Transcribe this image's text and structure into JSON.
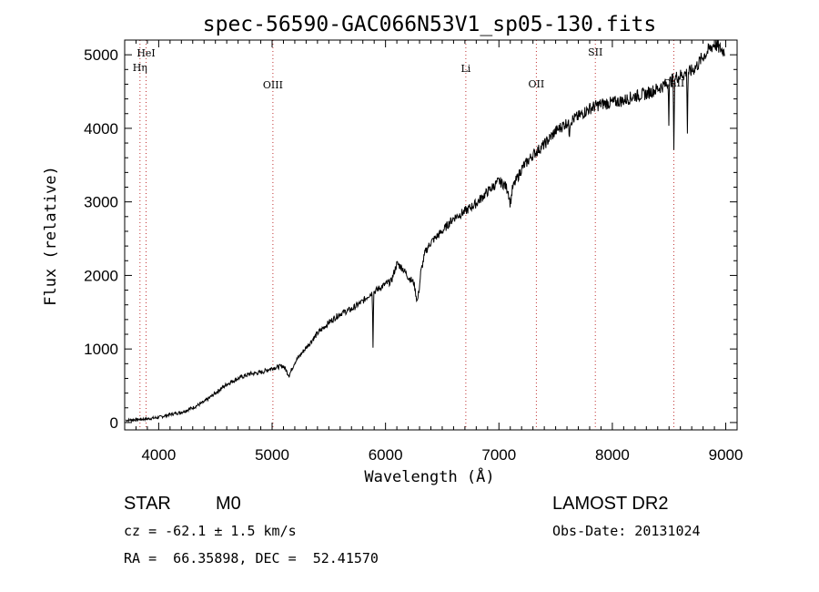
{
  "title": "spec-56590-GAC066N53V1_sp05-130.fits",
  "info": {
    "obj_class": "STAR",
    "subclass": "M0",
    "cz": "cz = -62.1 ± 1.5 km/s",
    "coords": "RA =  66.35898, DEC =  52.41570",
    "survey": "LAMOST DR2",
    "obs_date": "Obs-Date: 20131024"
  },
  "colors": {
    "line": "#000000",
    "background": "#ffffff"
  },
  "chart_data": {
    "type": "line",
    "title": "spec-56590-GAC066N53V1_sp05-130.fits",
    "xlabel": "Wavelength (Å)",
    "ylabel": "Flux (relative)",
    "xlim": [
      3700,
      9100
    ],
    "ylim": [
      -100,
      5200
    ],
    "xticks": [
      4000,
      5000,
      6000,
      7000,
      8000,
      9000
    ],
    "yticks": [
      0,
      1000,
      2000,
      3000,
      4000,
      5000
    ],
    "grid": false,
    "series": [
      {
        "x": [
          3700,
          3800,
          3900,
          4000,
          4100,
          4200,
          4300,
          4400,
          4500,
          4600,
          4700,
          4800,
          4900,
          5000,
          5100,
          5150,
          5200,
          5300,
          5400,
          5500,
          5600,
          5700,
          5800,
          5850,
          5890,
          5950,
          6000,
          6050,
          6100,
          6150,
          6200,
          6250,
          6300,
          6350,
          6400,
          6500,
          6600,
          6700,
          6800,
          6900,
          7000,
          7050,
          7100,
          7200,
          7300,
          7400,
          7500,
          7600,
          7700,
          7800,
          7900,
          8000,
          8100,
          8200,
          8300,
          8400,
          8500,
          8550,
          8600,
          8650,
          8700,
          8750,
          8800,
          8850,
          8900,
          8950,
          9000
        ],
        "y": [
          30,
          40,
          50,
          70,
          110,
          140,
          200,
          280,
          400,
          520,
          600,
          660,
          680,
          740,
          770,
          640,
          820,
          1020,
          1210,
          1360,
          1480,
          1540,
          1650,
          1730,
          1770,
          1830,
          1880,
          1920,
          2160,
          2100,
          1980,
          1900,
          1960,
          2320,
          2450,
          2600,
          2780,
          2870,
          2980,
          3140,
          3280,
          3230,
          3120,
          3450,
          3640,
          3780,
          3960,
          4080,
          4160,
          4270,
          4330,
          4350,
          4380,
          4440,
          4470,
          4540,
          4620,
          4690,
          4720,
          4750,
          4780,
          4860,
          4980,
          5060,
          5150,
          5080,
          5040
        ]
      }
    ],
    "line_markers": [
      {
        "label": "HeI",
        "x": 3889
      },
      {
        "label": "Hη",
        "x": 3835
      },
      {
        "label": "OIII",
        "x": 5007
      },
      {
        "label": "Li",
        "x": 6708
      },
      {
        "label": "OII",
        "x": 7330
      },
      {
        "label": "SII",
        "x": 7850
      },
      {
        "label": "CaII",
        "x": 8542
      }
    ]
  }
}
